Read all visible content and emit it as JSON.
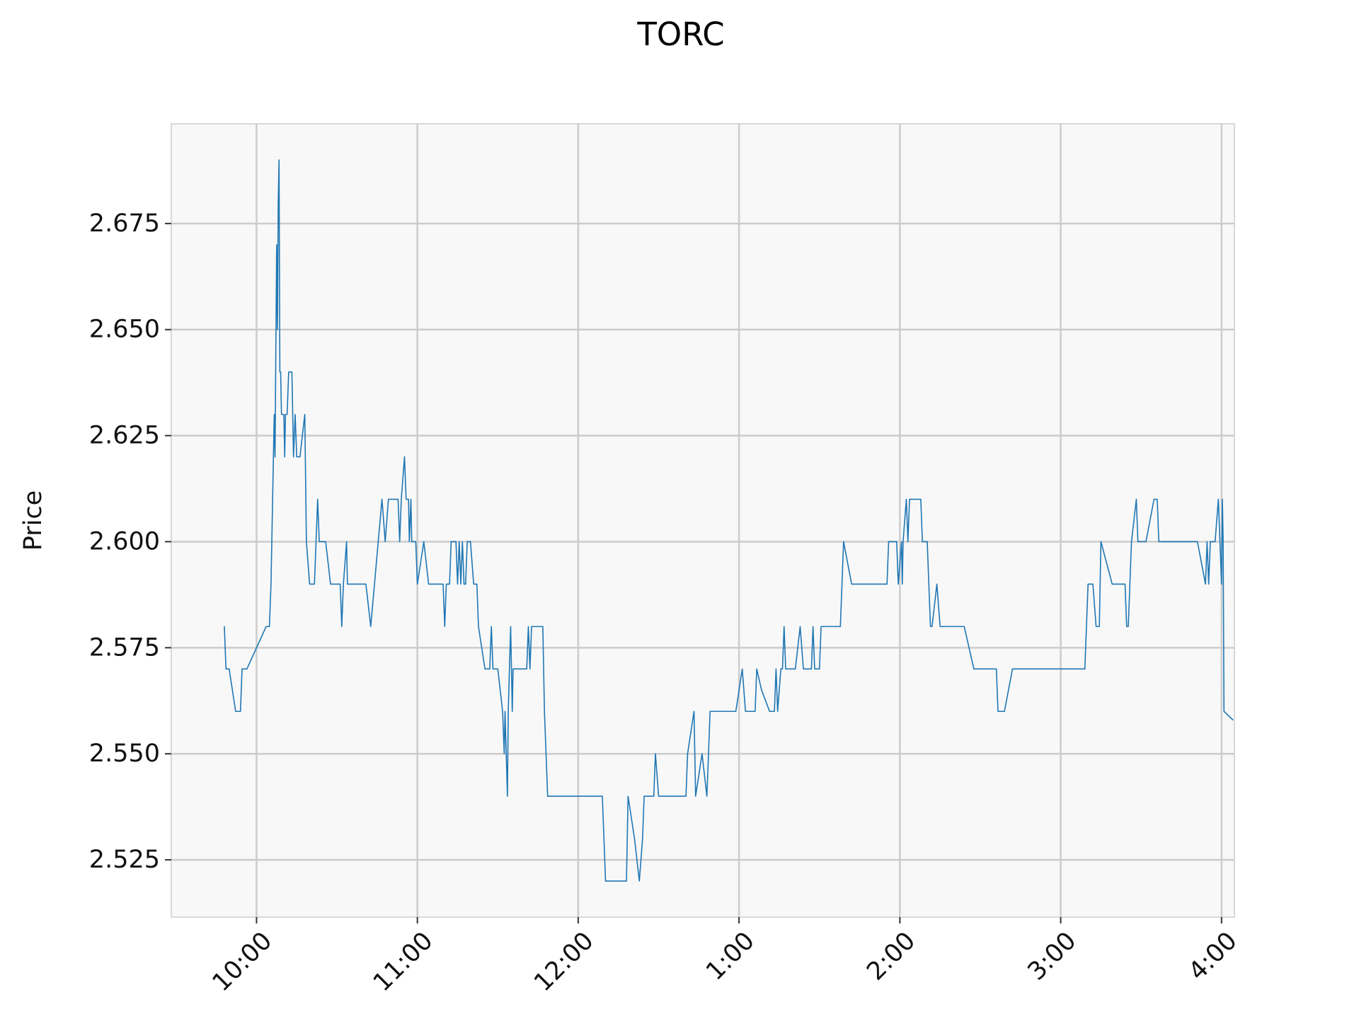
{
  "chart_data": {
    "type": "line",
    "title": "TORC",
    "xlabel": "",
    "ylabel": "Price",
    "x_unit": "hours (24h clock)",
    "xlim": [
      9.47,
      16.08
    ],
    "ylim": [
      2.5115,
      2.6985
    ],
    "x_ticks": [
      {
        "value": 10,
        "label": "10:00"
      },
      {
        "value": 11,
        "label": "11:00"
      },
      {
        "value": 12,
        "label": "12:00"
      },
      {
        "value": 13,
        "label": "1:00"
      },
      {
        "value": 14,
        "label": "2:00"
      },
      {
        "value": 15,
        "label": "3:00"
      },
      {
        "value": 16,
        "label": "4:00"
      }
    ],
    "y_ticks": [
      {
        "value": 2.525,
        "label": "2.525"
      },
      {
        "value": 2.55,
        "label": "2.550"
      },
      {
        "value": 2.575,
        "label": "2.575"
      },
      {
        "value": 2.6,
        "label": "2.600"
      },
      {
        "value": 2.625,
        "label": "2.625"
      },
      {
        "value": 2.65,
        "label": "2.650"
      },
      {
        "value": 2.675,
        "label": "2.675"
      }
    ],
    "grid": true,
    "colors": {
      "line": "#1f77b4",
      "plot_bg": "#f8f8f8",
      "grid": "#cccccc",
      "spine": "#d9d9d9"
    },
    "series": [
      {
        "points": [
          [
            9.8,
            2.58
          ],
          [
            9.81,
            2.57
          ],
          [
            9.83,
            2.57
          ],
          [
            9.87,
            2.56
          ],
          [
            9.9,
            2.56
          ],
          [
            9.91,
            2.57
          ],
          [
            9.94,
            2.57
          ],
          [
            10.06,
            2.58
          ],
          [
            10.08,
            2.58
          ],
          [
            10.09,
            2.59
          ],
          [
            10.11,
            2.63
          ],
          [
            10.115,
            2.62
          ],
          [
            10.125,
            2.67
          ],
          [
            10.13,
            2.65
          ],
          [
            10.135,
            2.68
          ],
          [
            10.14,
            2.69
          ],
          [
            10.145,
            2.64
          ],
          [
            10.15,
            2.64
          ],
          [
            10.155,
            2.63
          ],
          [
            10.17,
            2.63
          ],
          [
            10.175,
            2.62
          ],
          [
            10.18,
            2.63
          ],
          [
            10.19,
            2.63
          ],
          [
            10.2,
            2.64
          ],
          [
            10.22,
            2.64
          ],
          [
            10.23,
            2.62
          ],
          [
            10.24,
            2.63
          ],
          [
            10.25,
            2.62
          ],
          [
            10.27,
            2.62
          ],
          [
            10.3,
            2.63
          ],
          [
            10.31,
            2.6
          ],
          [
            10.33,
            2.59
          ],
          [
            10.36,
            2.59
          ],
          [
            10.38,
            2.61
          ],
          [
            10.39,
            2.6
          ],
          [
            10.43,
            2.6
          ],
          [
            10.46,
            2.59
          ],
          [
            10.52,
            2.59
          ],
          [
            10.53,
            2.58
          ],
          [
            10.54,
            2.59
          ],
          [
            10.56,
            2.6
          ],
          [
            10.565,
            2.59
          ],
          [
            10.68,
            2.59
          ],
          [
            10.71,
            2.58
          ],
          [
            10.78,
            2.61
          ],
          [
            10.8,
            2.6
          ],
          [
            10.82,
            2.61
          ],
          [
            10.88,
            2.61
          ],
          [
            10.89,
            2.6
          ],
          [
            10.9,
            2.61
          ],
          [
            10.92,
            2.62
          ],
          [
            10.93,
            2.61
          ],
          [
            10.945,
            2.61
          ],
          [
            10.95,
            2.6
          ],
          [
            10.96,
            2.61
          ],
          [
            10.965,
            2.6
          ],
          [
            10.99,
            2.6
          ],
          [
            11.0,
            2.59
          ],
          [
            11.04,
            2.6
          ],
          [
            11.07,
            2.59
          ],
          [
            11.16,
            2.59
          ],
          [
            11.17,
            2.58
          ],
          [
            11.18,
            2.59
          ],
          [
            11.2,
            2.59
          ],
          [
            11.21,
            2.6
          ],
          [
            11.24,
            2.6
          ],
          [
            11.25,
            2.59
          ],
          [
            11.26,
            2.6
          ],
          [
            11.27,
            2.59
          ],
          [
            11.28,
            2.6
          ],
          [
            11.29,
            2.59
          ],
          [
            11.3,
            2.59
          ],
          [
            11.31,
            2.6
          ],
          [
            11.33,
            2.6
          ],
          [
            11.35,
            2.59
          ],
          [
            11.37,
            2.59
          ],
          [
            11.38,
            2.58
          ],
          [
            11.42,
            2.57
          ],
          [
            11.45,
            2.57
          ],
          [
            11.46,
            2.58
          ],
          [
            11.47,
            2.57
          ],
          [
            11.5,
            2.57
          ],
          [
            11.53,
            2.56
          ],
          [
            11.54,
            2.55
          ],
          [
            11.545,
            2.56
          ],
          [
            11.56,
            2.54
          ],
          [
            11.565,
            2.56
          ],
          [
            11.58,
            2.58
          ],
          [
            11.59,
            2.56
          ],
          [
            11.595,
            2.57
          ],
          [
            11.68,
            2.57
          ],
          [
            11.69,
            2.58
          ],
          [
            11.7,
            2.57
          ],
          [
            11.71,
            2.58
          ],
          [
            11.78,
            2.58
          ],
          [
            11.79,
            2.56
          ],
          [
            11.81,
            2.54
          ],
          [
            12.15,
            2.54
          ],
          [
            12.16,
            2.53
          ],
          [
            12.17,
            2.52
          ],
          [
            12.3,
            2.52
          ],
          [
            12.31,
            2.54
          ],
          [
            12.35,
            2.53
          ],
          [
            12.38,
            2.52
          ],
          [
            12.4,
            2.53
          ],
          [
            12.41,
            2.54
          ],
          [
            12.47,
            2.54
          ],
          [
            12.48,
            2.55
          ],
          [
            12.5,
            2.54
          ],
          [
            12.67,
            2.54
          ],
          [
            12.68,
            2.55
          ],
          [
            12.72,
            2.56
          ],
          [
            12.73,
            2.54
          ],
          [
            12.77,
            2.55
          ],
          [
            12.8,
            2.54
          ],
          [
            12.82,
            2.56
          ],
          [
            12.98,
            2.56
          ],
          [
            13.02,
            2.57
          ],
          [
            13.04,
            2.56
          ],
          [
            13.1,
            2.56
          ],
          [
            13.11,
            2.57
          ],
          [
            13.14,
            2.565
          ],
          [
            13.19,
            2.56
          ],
          [
            13.22,
            2.56
          ],
          [
            13.23,
            2.57
          ],
          [
            13.24,
            2.56
          ],
          [
            13.26,
            2.57
          ],
          [
            13.27,
            2.57
          ],
          [
            13.28,
            2.58
          ],
          [
            13.29,
            2.57
          ],
          [
            13.35,
            2.57
          ],
          [
            13.38,
            2.58
          ],
          [
            13.4,
            2.57
          ],
          [
            13.45,
            2.57
          ],
          [
            13.46,
            2.58
          ],
          [
            13.47,
            2.57
          ],
          [
            13.5,
            2.57
          ],
          [
            13.51,
            2.58
          ],
          [
            13.53,
            2.58
          ],
          [
            13.63,
            2.58
          ],
          [
            13.65,
            2.6
          ],
          [
            13.7,
            2.59
          ],
          [
            13.92,
            2.59
          ],
          [
            13.93,
            2.6
          ],
          [
            13.98,
            2.6
          ],
          [
            13.99,
            2.59
          ],
          [
            14.01,
            2.6
          ],
          [
            14.015,
            2.59
          ],
          [
            14.02,
            2.6
          ],
          [
            14.04,
            2.61
          ],
          [
            14.05,
            2.6
          ],
          [
            14.06,
            2.61
          ],
          [
            14.13,
            2.61
          ],
          [
            14.14,
            2.6
          ],
          [
            14.17,
            2.6
          ],
          [
            14.19,
            2.58
          ],
          [
            14.2,
            2.58
          ],
          [
            14.23,
            2.59
          ],
          [
            14.25,
            2.58
          ],
          [
            14.4,
            2.58
          ],
          [
            14.46,
            2.57
          ],
          [
            14.6,
            2.57
          ],
          [
            14.61,
            2.56
          ],
          [
            14.65,
            2.56
          ],
          [
            14.7,
            2.57
          ],
          [
            15.15,
            2.57
          ],
          [
            15.17,
            2.59
          ],
          [
            15.2,
            2.59
          ],
          [
            15.22,
            2.58
          ],
          [
            15.24,
            2.58
          ],
          [
            15.25,
            2.6
          ],
          [
            15.32,
            2.59
          ],
          [
            15.4,
            2.59
          ],
          [
            15.41,
            2.58
          ],
          [
            15.42,
            2.58
          ],
          [
            15.44,
            2.6
          ],
          [
            15.47,
            2.61
          ],
          [
            15.48,
            2.6
          ],
          [
            15.53,
            2.6
          ],
          [
            15.58,
            2.61
          ],
          [
            15.6,
            2.61
          ],
          [
            15.61,
            2.6
          ],
          [
            15.85,
            2.6
          ],
          [
            15.9,
            2.59
          ],
          [
            15.91,
            2.6
          ],
          [
            15.92,
            2.59
          ],
          [
            15.93,
            2.6
          ],
          [
            15.96,
            2.6
          ],
          [
            15.98,
            2.61
          ],
          [
            15.99,
            2.6
          ],
          [
            16.0,
            2.59
          ],
          [
            16.005,
            2.61
          ],
          [
            16.01,
            2.6
          ],
          [
            16.015,
            2.56
          ],
          [
            16.07,
            2.558
          ]
        ]
      }
    ]
  }
}
